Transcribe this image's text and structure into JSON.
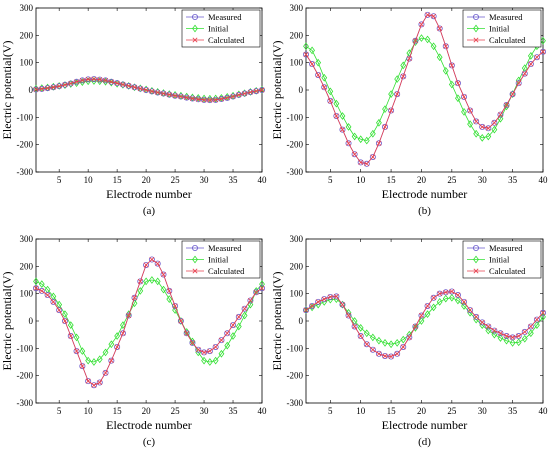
{
  "figure": {
    "ylabel": "Electric potential(V)",
    "xlabel": "Electrode number"
  },
  "colors": {
    "Measured": "#6a5acd",
    "Initial": "#33e033",
    "Calculated": "#e8404f"
  },
  "chart_data": [
    {
      "type": "line",
      "panel_label": "(a)",
      "xlabel": "Electrode number",
      "ylabel": "Electric potential(V)",
      "xlim": [
        1,
        40
      ],
      "ylim": [
        -300,
        300
      ],
      "xticks": [
        5,
        10,
        15,
        20,
        25,
        30,
        35,
        40
      ],
      "yticks": [
        300,
        200,
        100,
        0,
        -100,
        -200,
        -300
      ],
      "grid": false,
      "legend_position": "top-right",
      "x": [
        1,
        2,
        3,
        4,
        5,
        6,
        7,
        8,
        9,
        10,
        11,
        12,
        13,
        14,
        15,
        16,
        17,
        18,
        19,
        20,
        21,
        22,
        23,
        24,
        25,
        26,
        27,
        28,
        29,
        30,
        31,
        32,
        33,
        34,
        35,
        36,
        37,
        38,
        39,
        40
      ],
      "series": [
        {
          "name": "Measured",
          "marker": "circle",
          "values": [
            2,
            4,
            7,
            10,
            14,
            19,
            24,
            30,
            35,
            39,
            40,
            38,
            35,
            30,
            25,
            20,
            15,
            10,
            5,
            0,
            -5,
            -9,
            -13,
            -17,
            -21,
            -24,
            -28,
            -31,
            -34,
            -36,
            -37,
            -36,
            -33,
            -29,
            -24,
            -18,
            -13,
            -8,
            -4,
            0
          ]
        },
        {
          "name": "Initial",
          "marker": "diamond",
          "values": [
            5,
            7,
            9,
            12,
            15,
            18,
            22,
            25,
            29,
            32,
            33,
            32,
            30,
            27,
            23,
            19,
            15,
            10,
            6,
            2,
            -3,
            -7,
            -11,
            -15,
            -18,
            -21,
            -24,
            -27,
            -29,
            -31,
            -32,
            -31,
            -29,
            -25,
            -21,
            -16,
            -12,
            -7,
            -3,
            1
          ]
        },
        {
          "name": "Calculated",
          "marker": "x",
          "values": [
            2,
            4,
            7,
            10,
            14,
            19,
            24,
            30,
            35,
            39,
            40,
            38,
            35,
            30,
            25,
            20,
            15,
            10,
            5,
            0,
            -5,
            -9,
            -13,
            -17,
            -21,
            -24,
            -28,
            -31,
            -34,
            -36,
            -37,
            -36,
            -33,
            -29,
            -24,
            -18,
            -13,
            -8,
            -4,
            0
          ]
        }
      ]
    },
    {
      "type": "line",
      "panel_label": "(b)",
      "xlabel": "Electrode number",
      "ylabel": "Electric potential(V)",
      "xlim": [
        1,
        40
      ],
      "ylim": [
        -300,
        300
      ],
      "xticks": [
        5,
        10,
        15,
        20,
        25,
        30,
        35,
        40
      ],
      "yticks": [
        300,
        200,
        100,
        0,
        -100,
        -200,
        -300
      ],
      "grid": false,
      "legend_position": "top-right",
      "x": [
        1,
        2,
        3,
        4,
        5,
        6,
        7,
        8,
        9,
        10,
        11,
        12,
        13,
        14,
        15,
        16,
        17,
        18,
        19,
        20,
        21,
        22,
        23,
        24,
        25,
        26,
        27,
        28,
        29,
        30,
        31,
        32,
        33,
        34,
        35,
        36,
        37,
        38,
        39,
        40
      ],
      "series": [
        {
          "name": "Measured",
          "marker": "circle",
          "values": [
            130,
            95,
            55,
            10,
            -40,
            -95,
            -145,
            -195,
            -235,
            -265,
            -270,
            -245,
            -195,
            -135,
            -75,
            -15,
            50,
            115,
            180,
            240,
            275,
            270,
            225,
            160,
            90,
            25,
            -25,
            -75,
            -115,
            -135,
            -140,
            -120,
            -90,
            -55,
            -15,
            25,
            60,
            95,
            120,
            140
          ]
        },
        {
          "name": "Initial",
          "marker": "diamond",
          "values": [
            160,
            145,
            100,
            45,
            -5,
            -50,
            -95,
            -135,
            -170,
            -180,
            -185,
            -160,
            -120,
            -70,
            -15,
            40,
            90,
            135,
            175,
            190,
            185,
            160,
            120,
            70,
            20,
            -30,
            -80,
            -125,
            -160,
            -175,
            -170,
            -145,
            -105,
            -60,
            -15,
            35,
            80,
            125,
            160,
            180
          ]
        },
        {
          "name": "Calculated",
          "marker": "x",
          "values": [
            130,
            95,
            55,
            10,
            -40,
            -95,
            -145,
            -195,
            -235,
            -265,
            -270,
            -245,
            -195,
            -135,
            -75,
            -15,
            50,
            115,
            180,
            240,
            275,
            270,
            225,
            160,
            90,
            25,
            -25,
            -75,
            -115,
            -135,
            -140,
            -120,
            -90,
            -55,
            -15,
            25,
            60,
            95,
            120,
            140
          ]
        }
      ]
    },
    {
      "type": "line",
      "panel_label": "(c)",
      "xlabel": "Electrode number",
      "ylabel": "Electric potential(V)",
      "xlim": [
        1,
        40
      ],
      "ylim": [
        -300,
        300
      ],
      "xticks": [
        5,
        10,
        15,
        20,
        25,
        30,
        35,
        40
      ],
      "yticks": [
        300,
        200,
        100,
        0,
        -100,
        -200,
        -300
      ],
      "grid": false,
      "legend_position": "top-right",
      "x": [
        1,
        2,
        3,
        4,
        5,
        6,
        7,
        8,
        9,
        10,
        11,
        12,
        13,
        14,
        15,
        16,
        17,
        18,
        19,
        20,
        21,
        22,
        23,
        24,
        25,
        26,
        27,
        28,
        29,
        30,
        31,
        32,
        33,
        34,
        35,
        36,
        37,
        38,
        39,
        40
      ],
      "series": [
        {
          "name": "Measured",
          "marker": "circle",
          "values": [
            120,
            110,
            95,
            70,
            40,
            0,
            -55,
            -110,
            -165,
            -220,
            -235,
            -225,
            -190,
            -145,
            -95,
            -45,
            20,
            85,
            145,
            205,
            225,
            210,
            170,
            110,
            55,
            0,
            -45,
            -80,
            -105,
            -115,
            -110,
            -95,
            -70,
            -45,
            -15,
            15,
            45,
            75,
            105,
            120
          ]
        },
        {
          "name": "Initial",
          "marker": "diamond",
          "values": [
            145,
            135,
            115,
            90,
            60,
            25,
            -15,
            -60,
            -110,
            -145,
            -150,
            -140,
            -115,
            -85,
            -55,
            -15,
            25,
            65,
            110,
            145,
            150,
            145,
            115,
            80,
            40,
            0,
            -40,
            -75,
            -115,
            -145,
            -150,
            -145,
            -120,
            -90,
            -55,
            -20,
            20,
            60,
            110,
            135
          ]
        },
        {
          "name": "Calculated",
          "marker": "x",
          "values": [
            120,
            110,
            95,
            70,
            40,
            0,
            -55,
            -110,
            -165,
            -220,
            -235,
            -225,
            -190,
            -145,
            -95,
            -45,
            20,
            85,
            145,
            205,
            225,
            210,
            170,
            110,
            55,
            0,
            -45,
            -80,
            -105,
            -115,
            -110,
            -95,
            -70,
            -45,
            -15,
            15,
            45,
            75,
            105,
            120
          ]
        }
      ]
    },
    {
      "type": "line",
      "panel_label": "(d)",
      "xlabel": "Electrode number",
      "ylabel": "Electric potential(V)",
      "xlim": [
        1,
        40
      ],
      "ylim": [
        -300,
        300
      ],
      "xticks": [
        5,
        10,
        15,
        20,
        25,
        30,
        35,
        40
      ],
      "yticks": [
        300,
        200,
        100,
        0,
        -100,
        -200,
        -300
      ],
      "grid": false,
      "legend_position": "top-right",
      "x": [
        1,
        2,
        3,
        4,
        5,
        6,
        7,
        8,
        9,
        10,
        11,
        12,
        13,
        14,
        15,
        16,
        17,
        18,
        19,
        20,
        21,
        22,
        23,
        24,
        25,
        26,
        27,
        28,
        29,
        30,
        31,
        32,
        33,
        34,
        35,
        36,
        37,
        38,
        39,
        40
      ],
      "series": [
        {
          "name": "Measured",
          "marker": "circle",
          "values": [
            40,
            55,
            70,
            80,
            88,
            90,
            60,
            20,
            -20,
            -55,
            -85,
            -105,
            -120,
            -128,
            -130,
            -120,
            -95,
            -60,
            -20,
            20,
            55,
            85,
            100,
            105,
            108,
            95,
            70,
            40,
            15,
            -5,
            -20,
            -35,
            -45,
            -55,
            -60,
            -55,
            -40,
            -20,
            5,
            30
          ]
        },
        {
          "name": "Initial",
          "marker": "diamond",
          "values": [
            40,
            50,
            60,
            70,
            78,
            80,
            60,
            30,
            0,
            -25,
            -45,
            -60,
            -72,
            -80,
            -85,
            -80,
            -68,
            -50,
            -25,
            0,
            25,
            50,
            70,
            82,
            85,
            75,
            55,
            30,
            5,
            -15,
            -35,
            -50,
            -62,
            -72,
            -80,
            -78,
            -65,
            -45,
            -15,
            15
          ]
        },
        {
          "name": "Calculated",
          "marker": "x",
          "values": [
            40,
            55,
            70,
            80,
            88,
            90,
            60,
            20,
            -20,
            -55,
            -85,
            -105,
            -120,
            -128,
            -130,
            -120,
            -95,
            -60,
            -20,
            20,
            55,
            85,
            100,
            105,
            108,
            95,
            70,
            40,
            15,
            -5,
            -20,
            -35,
            -45,
            -55,
            -60,
            -55,
            -40,
            -20,
            5,
            30
          ]
        }
      ]
    }
  ]
}
